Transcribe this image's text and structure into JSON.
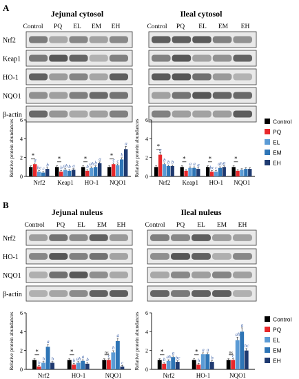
{
  "panels": {
    "A": {
      "letter": "A"
    },
    "B": {
      "letter": "B"
    }
  },
  "group_labels": [
    "Control",
    "PQ",
    "EL",
    "EM",
    "EH"
  ],
  "blots": [
    {
      "id": "a-left",
      "title": "Jejunal cytosol",
      "rows": [
        "Nrf2",
        "Keap1",
        "HO-1",
        "NQO1",
        "β-actin"
      ]
    },
    {
      "id": "a-right",
      "title": "Ileal cytosol",
      "rows": [
        "",
        "",
        "",
        "",
        ""
      ]
    },
    {
      "id": "b-left",
      "title": "Jejunal nuleus",
      "rows": [
        "Nrf2",
        "HO-1",
        "NQO1",
        "β-actin"
      ]
    },
    {
      "id": "b-right",
      "title": "Ileal nuleus",
      "rows": [
        "",
        "",
        "",
        ""
      ]
    }
  ],
  "legend": [
    "Control",
    "PQ",
    "EL",
    "EM",
    "EH"
  ],
  "colors": {
    "Control": "#000000",
    "PQ": "#e8282b",
    "EL": "#5b9bd5",
    "EM": "#2e75b6",
    "EH": "#1f3a70",
    "letters": "#3b5fa6"
  },
  "chart_data": [
    {
      "type": "bar",
      "panel": "A",
      "title": "Jejunal cytosol",
      "ylabel": "Relative protein abundances",
      "ylim": [
        0,
        6
      ],
      "yticks": [
        "0",
        "2",
        "4",
        "6"
      ],
      "categories": [
        "Nrf2",
        "Keap1",
        "HO-1",
        "NQO1"
      ],
      "series": [
        {
          "name": "Control",
          "values": [
            1.0,
            1.0,
            1.0,
            1.0
          ]
        },
        {
          "name": "PQ",
          "values": [
            1.3,
            0.5,
            0.6,
            1.3
          ]
        },
        {
          "name": "EL",
          "values": [
            0.5,
            0.7,
            0.9,
            1.2
          ]
        },
        {
          "name": "EM",
          "values": [
            0.4,
            0.6,
            1.0,
            1.8
          ]
        },
        {
          "name": "EH",
          "values": [
            0.8,
            0.7,
            1.4,
            2.9
          ]
        }
      ],
      "letters": [
        [
          "*",
          "a",
          "bc",
          "c",
          "b"
        ],
        [
          "*",
          "b",
          "ab",
          "b",
          "a"
        ],
        [
          "*",
          "b",
          "ab",
          "b",
          "a"
        ],
        [
          "*",
          "c",
          "c",
          "b",
          "a"
        ]
      ]
    },
    {
      "type": "bar",
      "panel": "A",
      "title": "Ileal cytosol",
      "ylabel": "Relative protein abundances",
      "ylim": [
        0,
        6
      ],
      "yticks": [
        "0",
        "2",
        "4",
        "6"
      ],
      "categories": [
        "Nrf2",
        "Keap1",
        "HO-1",
        "NQO1"
      ],
      "series": [
        {
          "name": "Control",
          "values": [
            1.0,
            1.0,
            1.0,
            1.0
          ]
        },
        {
          "name": "PQ",
          "values": [
            2.3,
            0.6,
            0.5,
            0.6
          ]
        },
        {
          "name": "EL",
          "values": [
            1.3,
            0.9,
            0.5,
            0.7
          ]
        },
        {
          "name": "EM",
          "values": [
            1.1,
            0.9,
            0.9,
            0.8
          ]
        },
        {
          "name": "EH",
          "values": [
            1.1,
            0.8,
            1.0,
            0.8
          ]
        }
      ],
      "letters": [
        [
          "*",
          "a",
          "b",
          "b",
          "b"
        ],
        [
          "*",
          "",
          "a",
          "a",
          "a"
        ],
        [
          "*",
          "bc",
          "c",
          "ab",
          "a"
        ],
        [
          "*",
          "",
          "",
          "",
          ""
        ]
      ]
    },
    {
      "type": "bar",
      "panel": "B",
      "title": "Jejunal nuleus",
      "ylabel": "Relative protein abundances",
      "ylim": [
        0,
        6
      ],
      "yticks": [
        "0",
        "2",
        "4",
        "6"
      ],
      "categories": [
        "Nrf2",
        "HO-1",
        "NQO1"
      ],
      "series": [
        {
          "name": "Control",
          "values": [
            1.0,
            1.0,
            1.0
          ]
        },
        {
          "name": "PQ",
          "values": [
            0.3,
            0.5,
            1.0
          ]
        },
        {
          "name": "EL",
          "values": [
            0.7,
            0.7,
            1.8
          ]
        },
        {
          "name": "EM",
          "values": [
            2.4,
            0.9,
            3.0
          ]
        },
        {
          "name": "EH",
          "values": [
            0.7,
            0.6,
            0.3
          ]
        }
      ],
      "letters": [
        [
          "*",
          "b",
          "b",
          "a",
          "b"
        ],
        [
          "*",
          "b",
          "ab",
          "a",
          "b"
        ],
        [
          "ns",
          "c",
          "b",
          "a",
          "c"
        ]
      ]
    },
    {
      "type": "bar",
      "panel": "B",
      "title": "Ileal nuleus",
      "ylabel": "Relative protein abundances",
      "ylim": [
        0,
        6
      ],
      "yticks": [
        "0",
        "2",
        "4",
        "6"
      ],
      "categories": [
        "Nrf2",
        "HO-1",
        "NQO1"
      ],
      "series": [
        {
          "name": "Control",
          "values": [
            1.0,
            1.0,
            1.0
          ]
        },
        {
          "name": "PQ",
          "values": [
            0.6,
            0.5,
            1.0
          ]
        },
        {
          "name": "EL",
          "values": [
            0.9,
            1.6,
            3.1
          ]
        },
        {
          "name": "EM",
          "values": [
            1.3,
            1.6,
            4.0
          ]
        },
        {
          "name": "EH",
          "values": [
            0.8,
            0.8,
            2.0
          ]
        }
      ],
      "letters": [
        [
          "*",
          "b",
          "ab",
          "a",
          "bc"
        ],
        [
          "*",
          "b",
          "a",
          "a",
          "b"
        ],
        [
          "ns",
          "c",
          "ab",
          "a",
          "bc"
        ]
      ]
    }
  ]
}
